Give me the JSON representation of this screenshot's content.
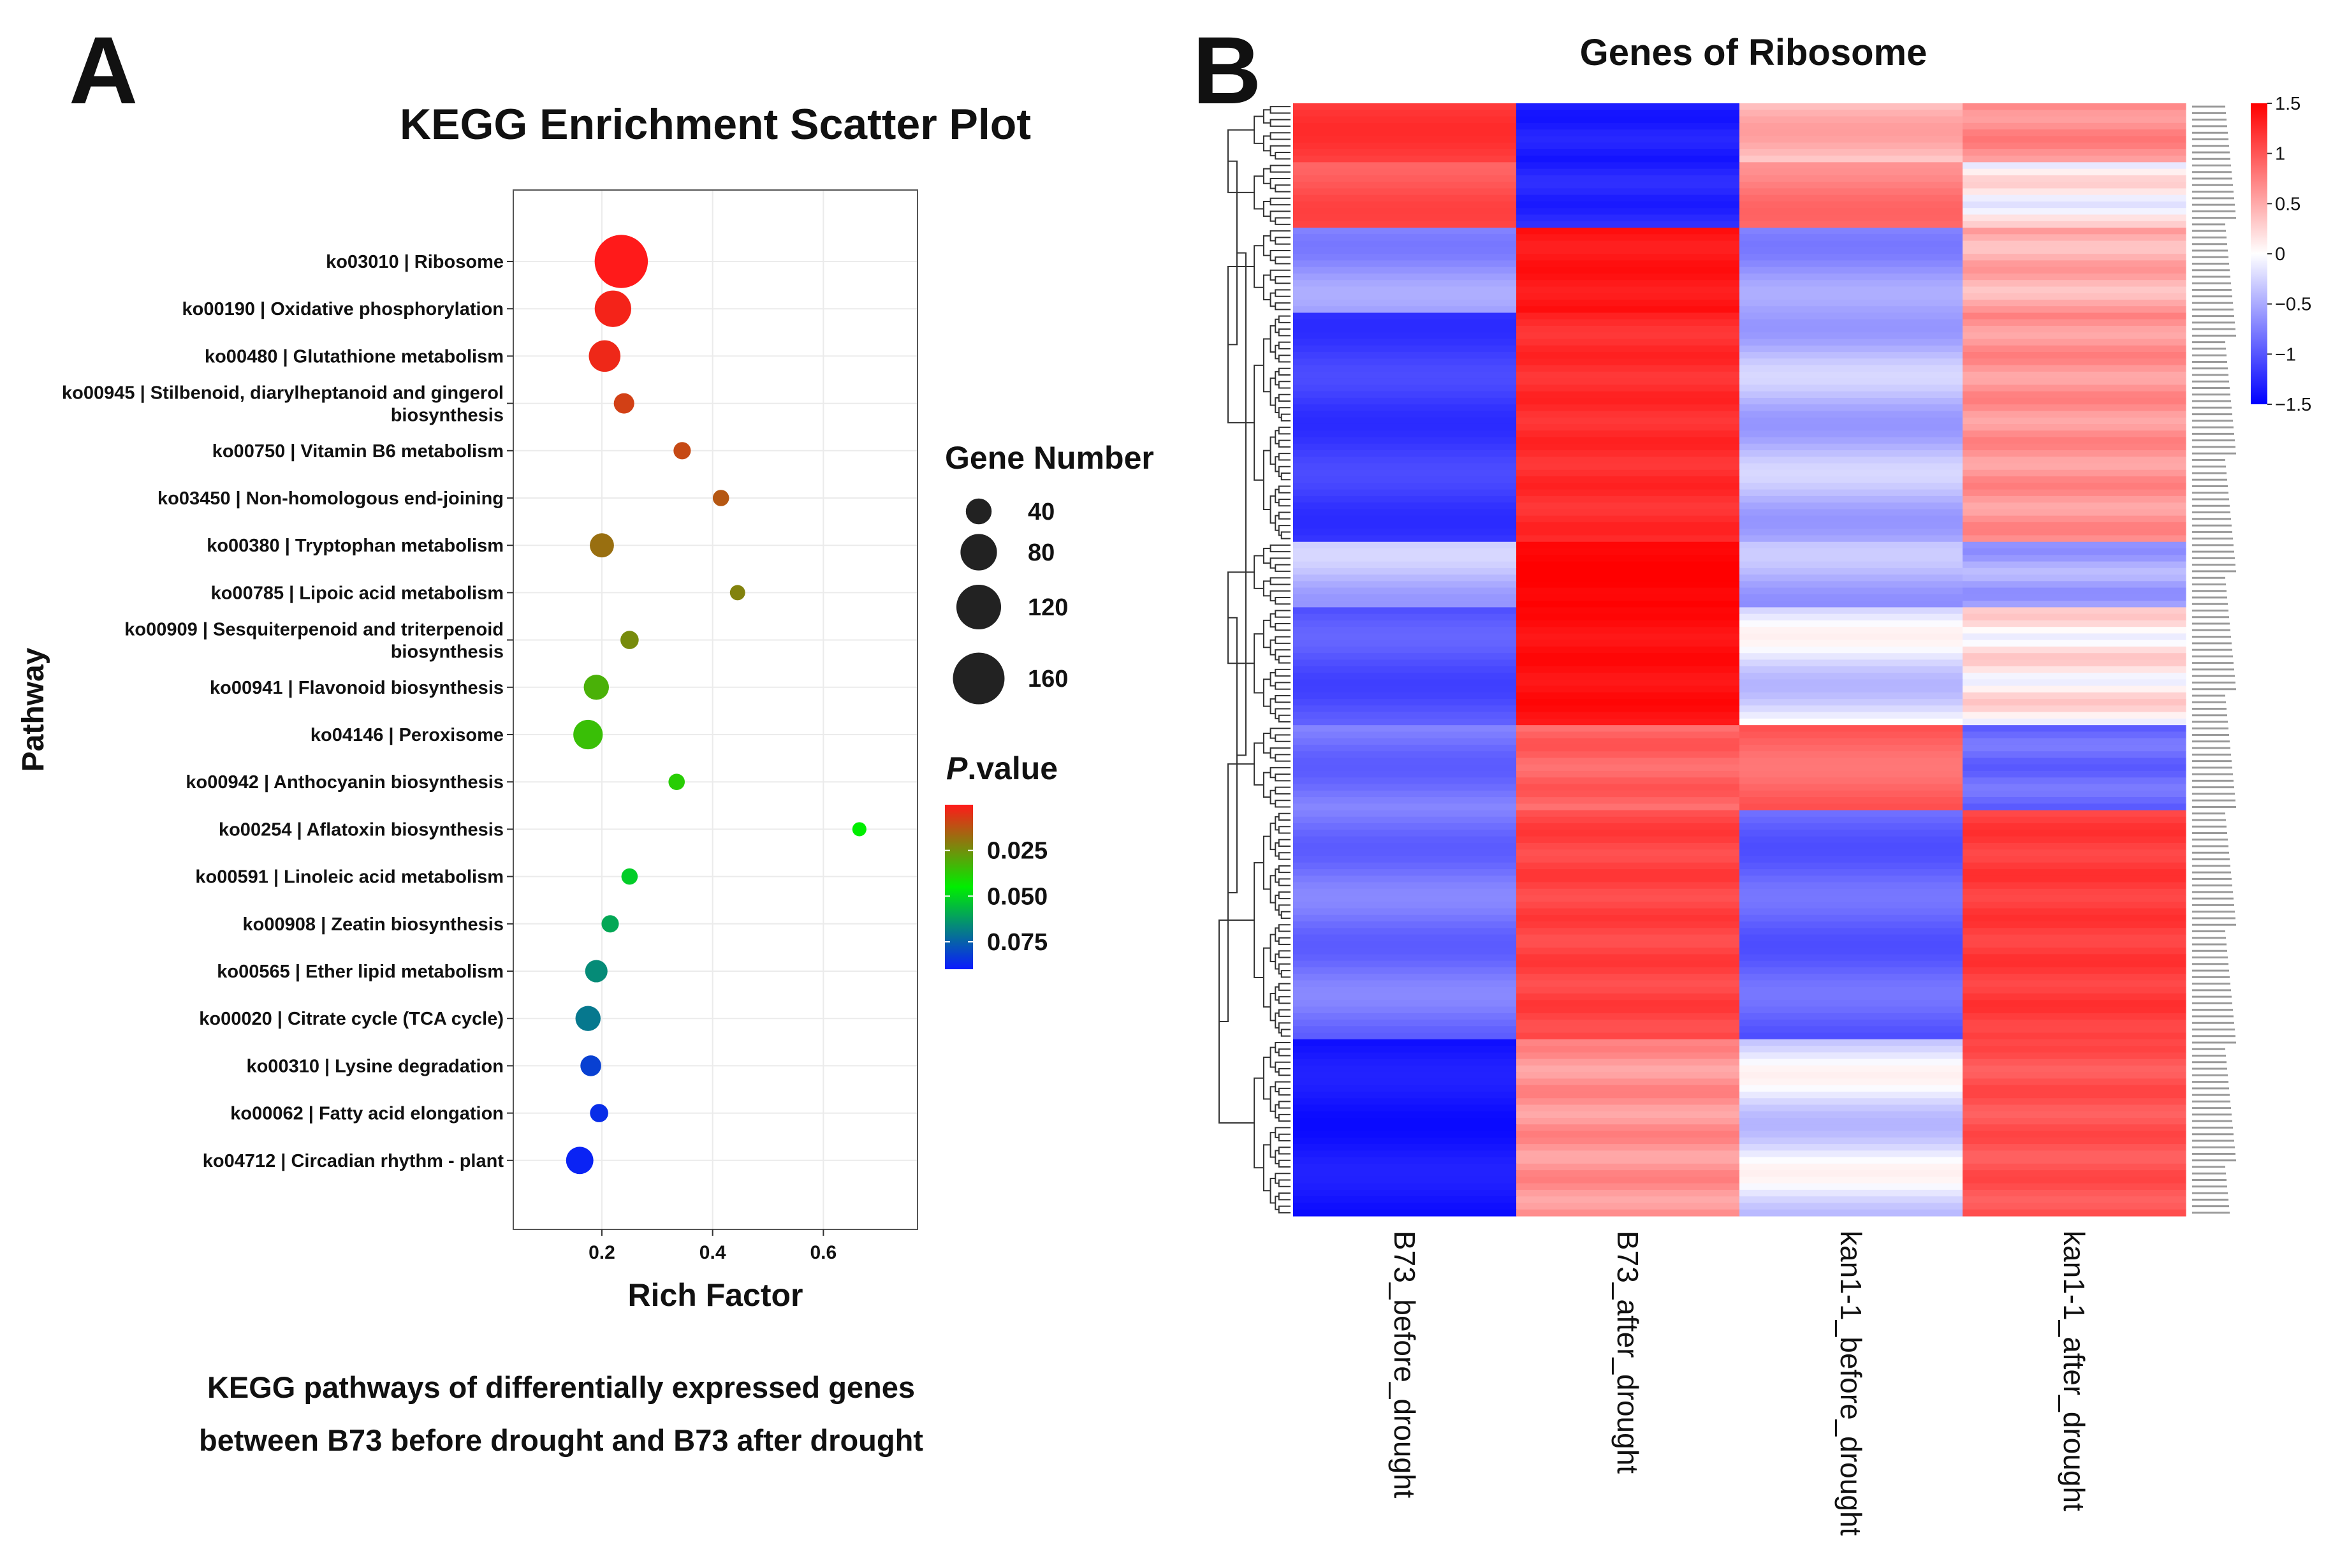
{
  "panel_a": {
    "letter": "A",
    "caption_line1": "KEGG pathways of differentially expressed genes",
    "caption_line2": "between B73 before drought and B73 after drought"
  },
  "panel_b": {
    "letter": "B"
  },
  "chart_data": [
    {
      "type": "scatter",
      "title": "KEGG Enrichment Scatter Plot",
      "xlabel": "Rich Factor",
      "ylabel": "Pathway",
      "xlim": [
        0.04,
        0.77
      ],
      "xticks": [
        0.2,
        0.4,
        0.6
      ],
      "xtick_labels": [
        "0.2",
        "0.4",
        "0.6"
      ],
      "grid": true,
      "size_legend": {
        "title": "Gene Number",
        "values": [
          40,
          80,
          120,
          160
        ]
      },
      "color_legend": {
        "title_italic": "P",
        "title_rest": ".value",
        "range": [
          0,
          0.09
        ],
        "ticks": [
          0.025,
          0.05,
          0.075
        ],
        "tick_labels": [
          "0.025",
          "0.050",
          "0.075"
        ],
        "colors": [
          "#ff1a1a",
          "#00ee00",
          "#0a1aff"
        ]
      },
      "points": [
        {
          "label_lines": [
            "ko03010 | Ribosome"
          ],
          "x": 0.235,
          "gene_number": 170,
          "p": 0.0
        },
        {
          "label_lines": [
            "ko00190 | Oxidative phosphorylation"
          ],
          "x": 0.22,
          "gene_number": 80,
          "p": 0.002
        },
        {
          "label_lines": [
            "ko00480 | Glutathione metabolism"
          ],
          "x": 0.205,
          "gene_number": 60,
          "p": 0.003
        },
        {
          "label_lines": [
            "ko00945 | Stilbenoid, diarylheptanoid and gingerol",
            "biosynthesis"
          ],
          "x": 0.24,
          "gene_number": 25,
          "p": 0.008
        },
        {
          "label_lines": [
            "ko00750 | Vitamin B6 metabolism"
          ],
          "x": 0.345,
          "gene_number": 18,
          "p": 0.01
        },
        {
          "label_lines": [
            "ko03450 | Non-homologous end-joining"
          ],
          "x": 0.415,
          "gene_number": 16,
          "p": 0.013
        },
        {
          "label_lines": [
            "ko00380 | Tryptophan metabolism"
          ],
          "x": 0.2,
          "gene_number": 35,
          "p": 0.018
        },
        {
          "label_lines": [
            "ko00785 | Lipoic acid metabolism"
          ],
          "x": 0.445,
          "gene_number": 14,
          "p": 0.022
        },
        {
          "label_lines": [
            "ko00909 | Sesquiterpenoid and triterpenoid",
            "biosynthesis"
          ],
          "x": 0.25,
          "gene_number": 20,
          "p": 0.024
        },
        {
          "label_lines": [
            "ko00941 | Flavonoid biosynthesis"
          ],
          "x": 0.19,
          "gene_number": 38,
          "p": 0.032
        },
        {
          "label_lines": [
            "ko04146 | Peroxisome"
          ],
          "x": 0.175,
          "gene_number": 52,
          "p": 0.035
        },
        {
          "label_lines": [
            "ko00942 | Anthocyanin biosynthesis"
          ],
          "x": 0.335,
          "gene_number": 16,
          "p": 0.038
        },
        {
          "label_lines": [
            "ko00254 | Aflatoxin biosynthesis"
          ],
          "x": 0.665,
          "gene_number": 12,
          "p": 0.045
        },
        {
          "label_lines": [
            "ko00591 | Linoleic acid metabolism"
          ],
          "x": 0.25,
          "gene_number": 16,
          "p": 0.052
        },
        {
          "label_lines": [
            "ko00908 | Zeatin biosynthesis"
          ],
          "x": 0.215,
          "gene_number": 18,
          "p": 0.06
        },
        {
          "label_lines": [
            "ko00565 | Ether lipid metabolism"
          ],
          "x": 0.19,
          "gene_number": 30,
          "p": 0.066
        },
        {
          "label_lines": [
            "ko00020 | Citrate cycle (TCA cycle)"
          ],
          "x": 0.175,
          "gene_number": 38,
          "p": 0.07
        },
        {
          "label_lines": [
            "ko00310 | Lysine degradation"
          ],
          "x": 0.18,
          "gene_number": 26,
          "p": 0.082
        },
        {
          "label_lines": [
            "ko00062 | Fatty acid elongation"
          ],
          "x": 0.195,
          "gene_number": 20,
          "p": 0.086
        },
        {
          "label_lines": [
            "ko04712 | Circadian rhythm - plant"
          ],
          "x": 0.16,
          "gene_number": 45,
          "p": 0.088
        }
      ]
    },
    {
      "type": "heatmap",
      "title": "Genes of Ribosome",
      "columns": [
        "B73_before_drought",
        "B73_after_drought",
        "kan1-1_before_drought",
        "kan1-1_after_drought"
      ],
      "scale": {
        "min": -1.5,
        "max": 1.5,
        "ticks": [
          1.5,
          1,
          0.5,
          0,
          -0.5,
          -1,
          -1.5
        ],
        "tick_labels": [
          "1.5",
          "1",
          "0.5",
          "0",
          "−0.5",
          "−1",
          "−1.5"
        ]
      },
      "row_count": 170,
      "row_groups": [
        {
          "rows": 9,
          "values": [
            1.1,
            -1.3,
            0.3,
            0.6
          ]
        },
        {
          "rows": 10,
          "values": [
            0.95,
            -1.25,
            0.7,
            0.05
          ]
        },
        {
          "rows": 13,
          "values": [
            -0.55,
            1.35,
            -0.55,
            0.4
          ]
        },
        {
          "rows": 35,
          "values": [
            -1.1,
            1.2,
            -0.35,
            0.55
          ]
        },
        {
          "rows": 10,
          "values": [
            -0.35,
            1.5,
            -0.4,
            -0.45
          ]
        },
        {
          "rows": 18,
          "values": [
            -0.95,
            1.4,
            -0.15,
            0.1
          ]
        },
        {
          "rows": 13,
          "values": [
            -0.75,
            0.85,
            0.85,
            -0.8
          ]
        },
        {
          "rows": 35,
          "values": [
            -0.75,
            1.05,
            -0.85,
            1.1
          ]
        },
        {
          "rows": 27,
          "values": [
            -1.35,
            0.55,
            -0.15,
            0.95
          ]
        }
      ]
    }
  ]
}
